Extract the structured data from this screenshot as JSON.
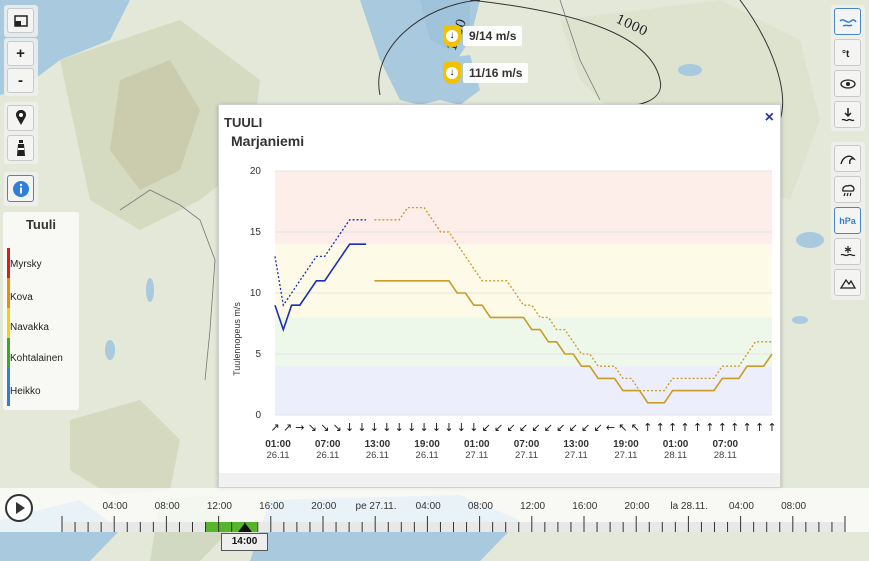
{
  "map": {
    "contour_label": "1000",
    "contour_label_2": "1000",
    "stations": [
      {
        "label": "9/14 m/s",
        "icon": "wind-arrow-down-icon"
      },
      {
        "label": "11/16 m/s",
        "icon": "wind-arrow-down-icon"
      }
    ]
  },
  "controls": {
    "layers_icon": "layers-icon",
    "zoom_in": "+",
    "zoom_out": "-",
    "location_icon": "location-pin-icon",
    "lighthouse_icon": "lighthouse-icon",
    "info_icon": "info-icon",
    "right_icons": [
      "wind-icon",
      "temperature-icon",
      "visibility-icon",
      "sea-level-icon",
      "wave-icon",
      "precipitation-icon",
      "pressure-icon",
      "ice-icon",
      "mountain-icon"
    ],
    "pressure_label": "hPa"
  },
  "legend": {
    "title": "Tuuli",
    "items": [
      {
        "label": "Myrsky",
        "color": "#d62020"
      },
      {
        "label": "Kova",
        "color": "#f08c00"
      },
      {
        "label": "Navakka",
        "color": "#f3d400"
      },
      {
        "label": "Kohtalainen",
        "color": "#3aa82a"
      },
      {
        "label": "Heikko",
        "color": "#2f7fd8"
      }
    ]
  },
  "popup": {
    "title": "TUULI",
    "station": "Marjaniemi",
    "close": "×"
  },
  "chart_data": {
    "type": "line",
    "ylabel": "Tuulennopeus m/s",
    "ylim": [
      0,
      20
    ],
    "yticks": [
      0,
      5,
      10,
      15,
      20
    ],
    "bands": [
      {
        "from": 0,
        "to": 4,
        "color": "#eceefb"
      },
      {
        "from": 4,
        "to": 8,
        "color": "#eef8ea"
      },
      {
        "from": 8,
        "to": 14,
        "color": "#fdfbe8"
      },
      {
        "from": 14,
        "to": 20,
        "color": "#fdeeea"
      }
    ],
    "x_ticks": [
      {
        "time": "01:00",
        "date": "26.11"
      },
      {
        "time": "07:00",
        "date": "26.11"
      },
      {
        "time": "13:00",
        "date": "26.11"
      },
      {
        "time": "19:00",
        "date": "26.11"
      },
      {
        "time": "01:00",
        "date": "27.11"
      },
      {
        "time": "07:00",
        "date": "27.11"
      },
      {
        "time": "13:00",
        "date": "27.11"
      },
      {
        "time": "19:00",
        "date": "27.11"
      },
      {
        "time": "01:00",
        "date": "28.11"
      },
      {
        "time": "07:00",
        "date": "28.11"
      }
    ],
    "x_hours_range": [
      0,
      60
    ],
    "series": [
      {
        "name": "obs-wind",
        "color": "#1a2fb3",
        "dash": false,
        "x": [
          0,
          1,
          2,
          3,
          4,
          5,
          6,
          7,
          8,
          9,
          10,
          11
        ],
        "y": [
          9,
          7,
          9,
          9,
          10,
          11,
          11,
          12,
          13,
          14,
          14,
          14
        ]
      },
      {
        "name": "obs-gust",
        "color": "#1a2fb3",
        "dash": true,
        "x": [
          0,
          1,
          2,
          3,
          4,
          5,
          6,
          7,
          8,
          9,
          10,
          11
        ],
        "y": [
          13,
          9,
          10,
          11,
          12,
          13,
          13,
          14,
          15,
          16,
          16,
          16
        ]
      },
      {
        "name": "fc-wind",
        "color": "#c89b2a",
        "dash": false,
        "x": [
          12,
          13,
          14,
          15,
          16,
          17,
          18,
          19,
          20,
          21,
          22,
          23,
          24,
          25,
          26,
          27,
          28,
          29,
          30,
          31,
          32,
          33,
          34,
          35,
          36,
          37,
          38,
          39,
          40,
          41,
          42,
          43,
          44,
          45,
          46,
          47,
          48,
          49,
          50,
          51,
          52,
          53,
          54,
          55,
          56,
          57,
          58,
          59,
          60
        ],
        "y": [
          11,
          11,
          11,
          11,
          11,
          11,
          11,
          11,
          11,
          11,
          10,
          10,
          9,
          9,
          8,
          8,
          8,
          8,
          8,
          7,
          7,
          6,
          6,
          5,
          5,
          4,
          4,
          3,
          3,
          3,
          2,
          2,
          2,
          1,
          1,
          1,
          2,
          2,
          2,
          2,
          2,
          2,
          3,
          3,
          3,
          4,
          4,
          4,
          5
        ]
      },
      {
        "name": "fc-gust",
        "color": "#c89b2a",
        "dash": true,
        "x": [
          12,
          13,
          14,
          15,
          16,
          17,
          18,
          19,
          20,
          21,
          22,
          23,
          24,
          25,
          26,
          27,
          28,
          29,
          30,
          31,
          32,
          33,
          34,
          35,
          36,
          37,
          38,
          39,
          40,
          41,
          42,
          43,
          44,
          45,
          46,
          47,
          48,
          49,
          50,
          51,
          52,
          53,
          54,
          55,
          56,
          57,
          58,
          59,
          60
        ],
        "y": [
          16,
          16,
          16,
          16,
          17,
          17,
          17,
          16,
          15,
          15,
          14,
          13,
          12,
          11,
          11,
          11,
          11,
          10,
          9,
          9,
          8,
          8,
          7,
          7,
          6,
          5,
          5,
          4,
          4,
          4,
          3,
          3,
          2,
          2,
          2,
          2,
          3,
          3,
          3,
          3,
          3,
          3,
          4,
          4,
          4,
          5,
          6,
          6,
          6
        ]
      }
    ],
    "wind_arrows": [
      "↗",
      "↗",
      "→",
      "↘",
      "↘",
      "↘",
      "↓",
      "↓",
      "↓",
      "↓",
      "↓",
      "↓",
      "↓",
      "↓",
      "↓",
      "↓",
      "↓",
      "↙",
      "↙",
      "↙",
      "↙",
      "↙",
      "↙",
      "↙",
      "↙",
      "↙",
      "↙",
      "←",
      "↖",
      "↖",
      "↑",
      "↑",
      "↑",
      "↑",
      "↑",
      "↑",
      "↑",
      "↑",
      "↑",
      "↑",
      "↑"
    ]
  },
  "timeline": {
    "labels": [
      "04:00",
      "08:00",
      "12:00",
      "16:00",
      "20:00",
      "pe 27.11.",
      "04:00",
      "08:00",
      "12:00",
      "16:00",
      "20:00",
      "la 28.11.",
      "04:00",
      "08:00"
    ],
    "current": "14:00"
  }
}
